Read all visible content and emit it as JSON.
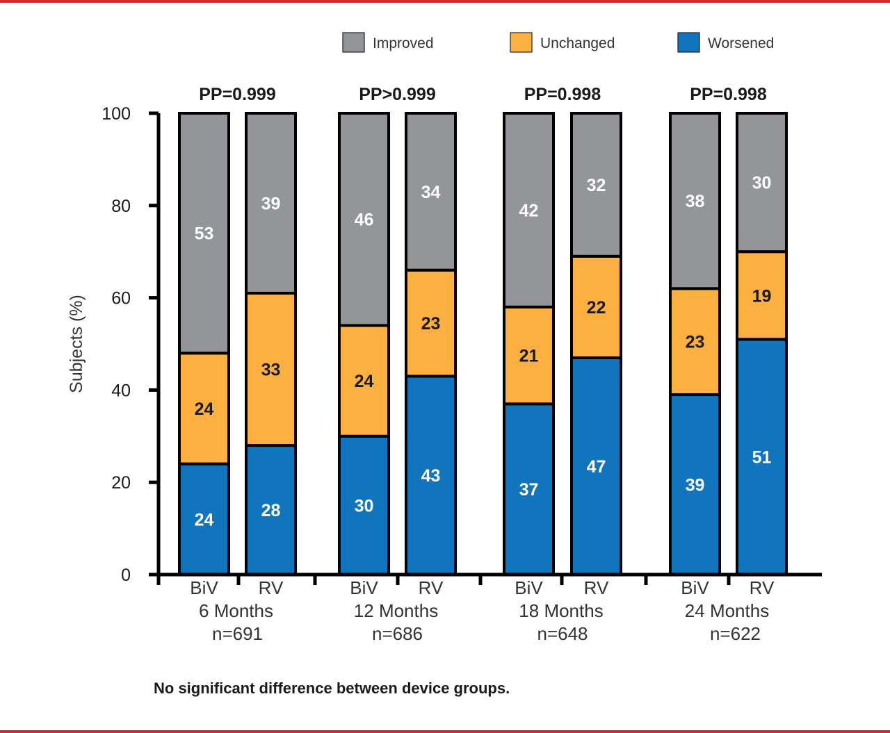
{
  "chart_data": {
    "type": "bar",
    "stacked": true,
    "title": "",
    "xlabel": "",
    "ylabel": "Subjects (%)",
    "ylim": [
      0,
      100
    ],
    "yticks": [
      0,
      20,
      40,
      60,
      80,
      100
    ],
    "grid": false,
    "legend_position": "top",
    "legend": [
      {
        "name": "Improved",
        "color": "#939598"
      },
      {
        "name": "Unchanged",
        "color": "#fbb040"
      },
      {
        "name": "Worsened",
        "color": "#1175bd"
      }
    ],
    "groups": [
      {
        "label": "6 Months",
        "n": "n=691",
        "pp": "PP=0.999",
        "bars": [
          {
            "label": "BiV",
            "worsened": 24,
            "unchanged": 24,
            "improved": 53
          },
          {
            "label": "RV",
            "worsened": 28,
            "unchanged": 33,
            "improved": 39
          }
        ]
      },
      {
        "label": "12 Months",
        "n": "n=686",
        "pp": "PP>0.999",
        "bars": [
          {
            "label": "BiV",
            "worsened": 30,
            "unchanged": 24,
            "improved": 46
          },
          {
            "label": "RV",
            "worsened": 43,
            "unchanged": 23,
            "improved": 34
          }
        ]
      },
      {
        "label": "18 Months",
        "n": "n=648",
        "pp": "PP=0.998",
        "bars": [
          {
            "label": "BiV",
            "worsened": 37,
            "unchanged": 21,
            "improved": 42
          },
          {
            "label": "RV",
            "worsened": 47,
            "unchanged": 22,
            "improved": 32
          }
        ]
      },
      {
        "label": "24 Months",
        "n": "n=622",
        "pp": "PP=0.998",
        "bars": [
          {
            "label": "BiV",
            "worsened": 39,
            "unchanged": 23,
            "improved": 38
          },
          {
            "label": "RV",
            "worsened": 51,
            "unchanged": 19,
            "improved": 30
          }
        ]
      }
    ],
    "footnote": "No significant difference between device groups."
  },
  "colors": {
    "frame_accent": "#e21f26",
    "improved": "#939598",
    "unchanged": "#fbb040",
    "worsened": "#1175bd",
    "outline": "#000000"
  }
}
